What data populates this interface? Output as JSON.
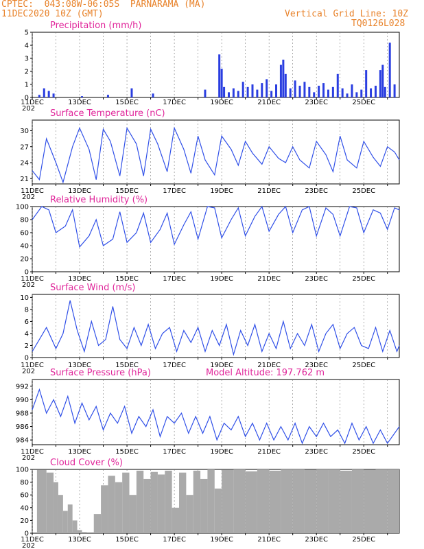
{
  "header": {
    "line1": "CPTEC:  043:08W-06:05S  PARNARAMA (MA)",
    "line2": "11DEC2020 10Z (GMT)",
    "grid_note": "Vertical Grid Line: 10Z",
    "run_code": "TQ0126L028"
  },
  "x_ticks": [
    "11DEC",
    "13DEC",
    "15DEC",
    "17DEC",
    "19DEC",
    "21DEC",
    "23DEC",
    "25DEC"
  ],
  "x_tick_days": [
    11,
    13,
    15,
    17,
    19,
    21,
    23,
    25
  ],
  "year_fragment": "202",
  "colors": {
    "header": "#e8822a",
    "title": "#e0259a",
    "line": "#3050e8",
    "bar": "#2a3ee0",
    "cloud": "#aaaaaa"
  },
  "chart_data": [
    {
      "type": "bar",
      "title": "Precipitation (mm/h)",
      "ylim": [
        0,
        5
      ],
      "yticks": [
        0,
        1,
        2,
        3,
        4,
        5
      ],
      "x_range": [
        11,
        26.5
      ],
      "x": [
        11.3,
        11.5,
        11.7,
        11.9,
        13.1,
        14.2,
        15.2,
        16.1,
        18.3,
        18.9,
        19.0,
        19.1,
        19.3,
        19.5,
        19.7,
        19.9,
        20.1,
        20.3,
        20.5,
        20.7,
        20.9,
        21.1,
        21.3,
        21.5,
        21.6,
        21.7,
        21.9,
        22.1,
        22.3,
        22.5,
        22.7,
        22.9,
        23.1,
        23.3,
        23.5,
        23.7,
        23.9,
        24.1,
        24.3,
        24.5,
        24.7,
        24.9,
        25.1,
        25.3,
        25.5,
        25.7,
        25.8,
        25.9,
        26.1,
        26.3
      ],
      "values": [
        0.2,
        0.7,
        0.5,
        0.3,
        0.1,
        0.2,
        0.7,
        0.3,
        0.6,
        3.3,
        2.2,
        0.8,
        0.4,
        0.7,
        0.5,
        1.2,
        0.8,
        1.0,
        0.6,
        1.1,
        1.4,
        0.5,
        1.0,
        2.5,
        2.9,
        1.8,
        0.7,
        1.3,
        0.9,
        1.2,
        0.8,
        0.4,
        0.9,
        1.1,
        0.6,
        0.8,
        1.8,
        0.7,
        0.3,
        1.0,
        0.4,
        0.6,
        2.1,
        0.7,
        0.9,
        2.1,
        2.5,
        0.8,
        4.2,
        1.0
      ]
    },
    {
      "type": "line",
      "title": "Surface Temperature (nC)",
      "ylim": [
        20,
        32
      ],
      "yticks": [
        21,
        24,
        27,
        30
      ],
      "x_range": [
        11,
        26.5
      ],
      "x": [
        11.0,
        11.3,
        11.6,
        12.0,
        12.3,
        12.7,
        13.0,
        13.4,
        13.7,
        14.0,
        14.3,
        14.7,
        15.0,
        15.4,
        15.7,
        16.0,
        16.3,
        16.7,
        17.0,
        17.4,
        17.7,
        18.0,
        18.3,
        18.7,
        19.0,
        19.4,
        19.7,
        20.0,
        20.3,
        20.7,
        21.0,
        21.4,
        21.7,
        22.0,
        22.3,
        22.7,
        23.0,
        23.4,
        23.7,
        24.0,
        24.3,
        24.7,
        25.0,
        25.4,
        25.7,
        26.0,
        26.3,
        26.5
      ],
      "values": [
        22.5,
        20.8,
        28.5,
        24.0,
        20.3,
        27.0,
        30.5,
        26.5,
        20.8,
        30.3,
        28.0,
        21.5,
        30.5,
        27.5,
        21.5,
        30.3,
        27.5,
        22.3,
        30.5,
        26.5,
        22.0,
        29.0,
        24.5,
        21.7,
        29.0,
        26.5,
        23.5,
        28.0,
        25.8,
        23.7,
        27.0,
        24.8,
        24.0,
        27.0,
        24.5,
        23.0,
        28.0,
        25.5,
        22.3,
        29.0,
        24.5,
        23.0,
        28.0,
        25.0,
        23.3,
        27.0,
        26.0,
        24.5
      ]
    },
    {
      "type": "line",
      "title": "Relative Humidity (%)",
      "ylim": [
        0,
        100
      ],
      "yticks": [
        0,
        20,
        40,
        60,
        80,
        100
      ],
      "x_range": [
        11,
        26.5
      ],
      "x": [
        11.0,
        11.4,
        11.7,
        12.0,
        12.4,
        12.7,
        13.0,
        13.4,
        13.7,
        14.0,
        14.4,
        14.7,
        15.0,
        15.4,
        15.7,
        16.0,
        16.4,
        16.7,
        17.0,
        17.4,
        17.7,
        18.0,
        18.4,
        18.7,
        19.0,
        19.4,
        19.7,
        20.0,
        20.4,
        20.7,
        21.0,
        21.4,
        21.7,
        22.0,
        22.4,
        22.7,
        23.0,
        23.4,
        23.7,
        24.0,
        24.4,
        24.7,
        25.0,
        25.4,
        25.7,
        26.0,
        26.3,
        26.5
      ],
      "values": [
        80,
        100,
        95,
        60,
        70,
        95,
        38,
        55,
        80,
        40,
        50,
        92,
        45,
        60,
        90,
        45,
        65,
        90,
        42,
        72,
        92,
        50,
        100,
        98,
        52,
        80,
        98,
        55,
        85,
        100,
        62,
        88,
        100,
        60,
        95,
        100,
        55,
        98,
        88,
        55,
        100,
        98,
        60,
        95,
        90,
        65,
        98,
        95
      ]
    },
    {
      "type": "line",
      "title": "Surface Wind (m/s)",
      "ylim": [
        0,
        10.5
      ],
      "yticks": [
        0,
        2,
        4,
        6,
        8,
        10
      ],
      "x_range": [
        11,
        26.5
      ],
      "x": [
        11.0,
        11.3,
        11.6,
        12.0,
        12.3,
        12.6,
        12.9,
        13.2,
        13.5,
        13.8,
        14.1,
        14.4,
        14.7,
        15.0,
        15.3,
        15.6,
        15.9,
        16.2,
        16.5,
        16.8,
        17.1,
        17.4,
        17.7,
        18.0,
        18.3,
        18.6,
        18.9,
        19.2,
        19.5,
        19.8,
        20.1,
        20.4,
        20.7,
        21.0,
        21.3,
        21.6,
        21.9,
        22.2,
        22.5,
        22.8,
        23.1,
        23.4,
        23.7,
        24.0,
        24.3,
        24.6,
        24.9,
        25.2,
        25.5,
        25.8,
        26.1,
        26.4,
        26.5
      ],
      "values": [
        1.0,
        3.0,
        5.0,
        1.5,
        4.0,
        9.5,
        4.5,
        1.0,
        6.0,
        2.0,
        3.0,
        8.5,
        3.0,
        1.5,
        5.0,
        2.0,
        5.5,
        1.5,
        4.0,
        5.0,
        1.0,
        4.5,
        2.5,
        5.0,
        1.0,
        4.5,
        2.0,
        5.5,
        0.5,
        4.5,
        2.0,
        5.5,
        1.0,
        4.0,
        1.5,
        6.0,
        1.5,
        4.0,
        2.0,
        5.5,
        1.0,
        4.0,
        5.5,
        1.5,
        4.0,
        5.0,
        2.0,
        1.5,
        5.0,
        1.0,
        4.5,
        1.0,
        2.0
      ]
    },
    {
      "type": "line",
      "title": "Surface Pressure (hPa)",
      "annotation": "Model Altitude: 197.762  m",
      "ylim": [
        983.3,
        993
      ],
      "yticks": [
        984,
        986,
        988,
        990,
        992
      ],
      "x_range": [
        11,
        26.5
      ],
      "x": [
        11.0,
        11.3,
        11.6,
        11.9,
        12.2,
        12.5,
        12.8,
        13.1,
        13.4,
        13.7,
        14.0,
        14.3,
        14.6,
        14.9,
        15.2,
        15.5,
        15.8,
        16.1,
        16.4,
        16.7,
        17.0,
        17.3,
        17.6,
        17.9,
        18.2,
        18.5,
        18.8,
        19.1,
        19.4,
        19.7,
        20.0,
        20.3,
        20.6,
        20.9,
        21.2,
        21.5,
        21.8,
        22.1,
        22.4,
        22.7,
        23.0,
        23.3,
        23.6,
        23.9,
        24.2,
        24.5,
        24.8,
        25.1,
        25.4,
        25.7,
        26.0,
        26.3,
        26.5
      ],
      "values": [
        988.5,
        991.5,
        988.0,
        990.0,
        987.5,
        990.5,
        986.5,
        989.5,
        987.0,
        989.0,
        985.5,
        988.0,
        986.5,
        989.0,
        985.0,
        987.5,
        986.0,
        988.5,
        984.5,
        987.5,
        986.5,
        988.0,
        985.0,
        987.5,
        985.0,
        987.5,
        984.0,
        986.5,
        985.5,
        987.5,
        984.5,
        986.5,
        984.0,
        986.5,
        984.0,
        986.0,
        984.0,
        986.5,
        983.5,
        986.0,
        984.5,
        986.5,
        984.5,
        985.5,
        983.5,
        986.5,
        984.0,
        986.0,
        983.5,
        985.5,
        983.5,
        985.0,
        986.0
      ]
    },
    {
      "type": "area",
      "title": "Cloud Cover (%)",
      "ylim": [
        0,
        100
      ],
      "yticks": [
        0,
        20,
        40,
        60,
        80,
        100
      ],
      "x_range": [
        11,
        26.5
      ],
      "x": [
        11.2,
        11.6,
        11.9,
        12.1,
        12.3,
        12.5,
        12.7,
        12.9,
        13.1,
        13.3,
        13.6,
        13.9,
        14.2,
        14.5,
        14.8,
        15.1,
        15.4,
        15.7,
        16.0,
        16.3,
        16.6,
        16.9,
        17.2,
        17.5,
        17.8,
        18.1,
        18.4,
        18.7,
        19.0,
        19.5,
        20.0,
        20.5,
        21.0,
        21.5,
        22.0,
        22.5,
        23.0,
        23.5,
        24.0,
        24.5,
        25.0,
        25.5,
        26.0,
        26.5
      ],
      "values": [
        99,
        95,
        80,
        60,
        35,
        45,
        20,
        5,
        2,
        0,
        30,
        75,
        90,
        80,
        95,
        60,
        98,
        85,
        96,
        92,
        98,
        40,
        95,
        60,
        98,
        85,
        100,
        70,
        99,
        100,
        97,
        100,
        98,
        100,
        100,
        99,
        100,
        100,
        98,
        100,
        99,
        100,
        100,
        100
      ]
    }
  ]
}
